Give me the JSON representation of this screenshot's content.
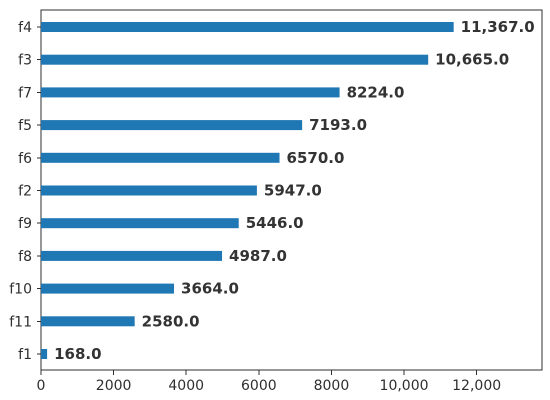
{
  "chart_data": {
    "type": "bar",
    "orientation": "horizontal",
    "categories": [
      "f4",
      "f3",
      "f7",
      "f5",
      "f6",
      "f2",
      "f9",
      "f8",
      "f10",
      "f11",
      "f1"
    ],
    "values": [
      11367.0,
      10665.0,
      8224.0,
      7193.0,
      6570.0,
      5947.0,
      5446.0,
      4987.0,
      3664.0,
      2580.0,
      168.0
    ],
    "value_labels": [
      "11,367.0",
      "10,665.0",
      "8224.0",
      "7193.0",
      "6570.0",
      "5947.0",
      "5446.0",
      "4987.0",
      "3664.0",
      "2580.0",
      "168.0"
    ],
    "x_ticks": [
      0,
      2000,
      4000,
      6000,
      8000,
      10000,
      12000
    ],
    "x_tick_labels": [
      "0",
      "2000",
      "4000",
      "6000",
      "8000",
      "10,000",
      "12,000"
    ],
    "xlim": [
      0,
      13800
    ],
    "title": "",
    "xlabel": "",
    "ylabel": "",
    "grid": false,
    "bar_color": "#1f77b4"
  }
}
